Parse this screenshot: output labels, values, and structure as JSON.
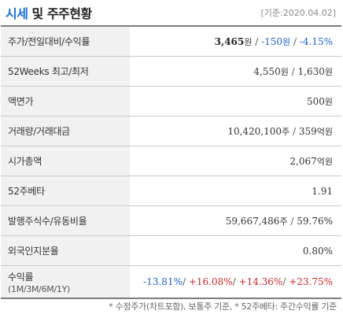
{
  "header": {
    "title_accent": "시세",
    "title_rest": " 및 주주현황",
    "date": "[기준:2020.04.02]"
  },
  "rows": {
    "price": {
      "label": "주가/전일대비/수익률",
      "price": "3,465",
      "price_unit": "원",
      "sep1": " / ",
      "change": "-150",
      "change_unit": "원",
      "sep2": " / ",
      "rate": "-4.15%"
    },
    "week52": {
      "label": "52Weeks 최고/최저",
      "high": "4,550",
      "high_unit": "원",
      "sep": " / ",
      "low": "1,630",
      "low_unit": "원"
    },
    "par": {
      "label": "액면가",
      "value": "500",
      "unit": "원"
    },
    "volume": {
      "label": "거래량/거래대금",
      "volume": "10,420,100",
      "volume_unit": "주",
      "sep": " / ",
      "amount": "359",
      "amount_unit": "억원"
    },
    "mcap": {
      "label": "시가총액",
      "value": "2,067",
      "unit": "억원"
    },
    "beta": {
      "label": "52주베타",
      "value": "1.91"
    },
    "shares": {
      "label": "발행주식수/유동비율",
      "shares": "59,667,486",
      "shares_unit": "주",
      "sep": " / ",
      "float": "59.76%"
    },
    "foreign": {
      "label": "외국인지분율",
      "value": "0.80%"
    },
    "returns": {
      "label": "수익률",
      "sublabel": "(1M/3M/6M/1Y)",
      "r1m": "-13.81%",
      "r3m": "+16.08%",
      "r6m": "+14.36%",
      "r1y": "+23.75%",
      "sep": "/ "
    }
  },
  "note": "* 수정주가(차트포함), 보통주 기준, * 52주베타: 주간수익률 기준",
  "colors": {
    "accent": "#1a6fd4",
    "negative": "#1a5fc4",
    "positive": "#c8282a",
    "label_bg": "#f1f1f1"
  }
}
